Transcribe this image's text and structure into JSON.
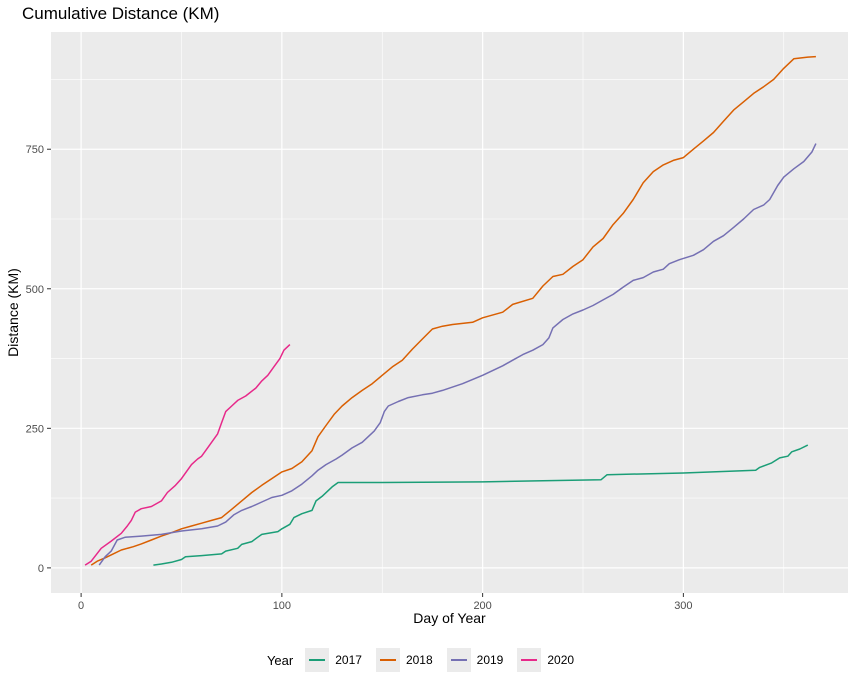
{
  "chart_data": {
    "type": "line",
    "title": "Cumulative Distance (KM)",
    "xlabel": "Day of Year",
    "ylabel": "Distance (KM)",
    "xlim": [
      -15,
      382
    ],
    "ylim": [
      -45,
      960
    ],
    "x_ticks": [
      0,
      100,
      200,
      300
    ],
    "y_ticks": [
      0,
      250,
      500,
      750
    ],
    "grid": true,
    "legend": {
      "title": "Year",
      "position": "bottom"
    },
    "series": [
      {
        "name": "2017",
        "color": "#1b9e77",
        "points": [
          [
            36,
            5
          ],
          [
            40,
            7
          ],
          [
            45,
            10
          ],
          [
            50,
            15
          ],
          [
            52,
            20
          ],
          [
            60,
            22
          ],
          [
            70,
            25
          ],
          [
            72,
            30
          ],
          [
            78,
            35
          ],
          [
            80,
            42
          ],
          [
            85,
            47
          ],
          [
            88,
            55
          ],
          [
            90,
            60
          ],
          [
            98,
            65
          ],
          [
            100,
            70
          ],
          [
            104,
            78
          ],
          [
            106,
            90
          ],
          [
            110,
            97
          ],
          [
            115,
            103
          ],
          [
            117,
            120
          ],
          [
            120,
            128
          ],
          [
            125,
            145
          ],
          [
            128,
            153
          ],
          [
            150,
            153
          ],
          [
            200,
            154
          ],
          [
            230,
            156
          ],
          [
            259,
            158
          ],
          [
            262,
            167
          ],
          [
            300,
            170
          ],
          [
            336,
            175
          ],
          [
            338,
            180
          ],
          [
            344,
            188
          ],
          [
            348,
            197
          ],
          [
            352,
            200
          ],
          [
            354,
            208
          ],
          [
            358,
            213
          ],
          [
            362,
            220
          ]
        ]
      },
      {
        "name": "2018",
        "color": "#d95f02",
        "points": [
          [
            5,
            5
          ],
          [
            8,
            12
          ],
          [
            12,
            18
          ],
          [
            16,
            25
          ],
          [
            20,
            32
          ],
          [
            26,
            38
          ],
          [
            30,
            43
          ],
          [
            35,
            50
          ],
          [
            40,
            57
          ],
          [
            45,
            63
          ],
          [
            50,
            70
          ],
          [
            55,
            75
          ],
          [
            60,
            80
          ],
          [
            65,
            85
          ],
          [
            70,
            90
          ],
          [
            75,
            105
          ],
          [
            80,
            120
          ],
          [
            85,
            135
          ],
          [
            90,
            148
          ],
          [
            95,
            160
          ],
          [
            100,
            172
          ],
          [
            105,
            178
          ],
          [
            110,
            190
          ],
          [
            115,
            210
          ],
          [
            118,
            235
          ],
          [
            122,
            255
          ],
          [
            126,
            275
          ],
          [
            130,
            290
          ],
          [
            135,
            305
          ],
          [
            140,
            318
          ],
          [
            145,
            330
          ],
          [
            150,
            345
          ],
          [
            155,
            360
          ],
          [
            160,
            372
          ],
          [
            165,
            392
          ],
          [
            170,
            410
          ],
          [
            175,
            428
          ],
          [
            180,
            433
          ],
          [
            185,
            436
          ],
          [
            195,
            440
          ],
          [
            200,
            448
          ],
          [
            210,
            458
          ],
          [
            215,
            472
          ],
          [
            225,
            483
          ],
          [
            230,
            505
          ],
          [
            235,
            522
          ],
          [
            240,
            526
          ],
          [
            245,
            540
          ],
          [
            250,
            552
          ],
          [
            255,
            575
          ],
          [
            260,
            590
          ],
          [
            265,
            615
          ],
          [
            270,
            635
          ],
          [
            275,
            660
          ],
          [
            280,
            690
          ],
          [
            285,
            710
          ],
          [
            290,
            722
          ],
          [
            295,
            730
          ],
          [
            300,
            735
          ],
          [
            305,
            750
          ],
          [
            310,
            765
          ],
          [
            315,
            780
          ],
          [
            320,
            800
          ],
          [
            325,
            820
          ],
          [
            330,
            835
          ],
          [
            335,
            850
          ],
          [
            340,
            862
          ],
          [
            345,
            875
          ],
          [
            350,
            895
          ],
          [
            355,
            912
          ],
          [
            362,
            915
          ],
          [
            366,
            916
          ]
        ]
      },
      {
        "name": "2019",
        "color": "#7570b3",
        "points": [
          [
            9,
            5
          ],
          [
            12,
            20
          ],
          [
            15,
            30
          ],
          [
            18,
            50
          ],
          [
            22,
            55
          ],
          [
            30,
            57
          ],
          [
            40,
            60
          ],
          [
            50,
            66
          ],
          [
            60,
            70
          ],
          [
            68,
            75
          ],
          [
            72,
            82
          ],
          [
            76,
            95
          ],
          [
            80,
            103
          ],
          [
            85,
            110
          ],
          [
            90,
            118
          ],
          [
            95,
            126
          ],
          [
            100,
            130
          ],
          [
            105,
            138
          ],
          [
            110,
            150
          ],
          [
            115,
            165
          ],
          [
            118,
            175
          ],
          [
            122,
            185
          ],
          [
            127,
            195
          ],
          [
            130,
            202
          ],
          [
            135,
            215
          ],
          [
            140,
            225
          ],
          [
            143,
            235
          ],
          [
            146,
            245
          ],
          [
            149,
            260
          ],
          [
            151,
            280
          ],
          [
            153,
            290
          ],
          [
            158,
            298
          ],
          [
            163,
            305
          ],
          [
            170,
            310
          ],
          [
            175,
            313
          ],
          [
            180,
            318
          ],
          [
            190,
            330
          ],
          [
            200,
            345
          ],
          [
            210,
            362
          ],
          [
            215,
            372
          ],
          [
            220,
            382
          ],
          [
            225,
            390
          ],
          [
            230,
            400
          ],
          [
            233,
            412
          ],
          [
            235,
            430
          ],
          [
            240,
            445
          ],
          [
            245,
            455
          ],
          [
            250,
            462
          ],
          [
            255,
            470
          ],
          [
            260,
            480
          ],
          [
            265,
            490
          ],
          [
            270,
            503
          ],
          [
            275,
            515
          ],
          [
            280,
            520
          ],
          [
            285,
            530
          ],
          [
            290,
            535
          ],
          [
            293,
            545
          ],
          [
            298,
            552
          ],
          [
            305,
            560
          ],
          [
            310,
            570
          ],
          [
            315,
            585
          ],
          [
            320,
            595
          ],
          [
            325,
            610
          ],
          [
            330,
            625
          ],
          [
            335,
            642
          ],
          [
            340,
            650
          ],
          [
            343,
            660
          ],
          [
            347,
            685
          ],
          [
            350,
            700
          ],
          [
            355,
            715
          ],
          [
            360,
            728
          ],
          [
            364,
            745
          ],
          [
            366,
            760
          ]
        ]
      },
      {
        "name": "2020",
        "color": "#e7298a",
        "points": [
          [
            2,
            5
          ],
          [
            5,
            12
          ],
          [
            10,
            35
          ],
          [
            15,
            48
          ],
          [
            20,
            62
          ],
          [
            23,
            75
          ],
          [
            25,
            85
          ],
          [
            27,
            100
          ],
          [
            30,
            106
          ],
          [
            35,
            110
          ],
          [
            40,
            120
          ],
          [
            43,
            135
          ],
          [
            47,
            148
          ],
          [
            50,
            160
          ],
          [
            55,
            185
          ],
          [
            58,
            195
          ],
          [
            60,
            200
          ],
          [
            62,
            210
          ],
          [
            65,
            225
          ],
          [
            68,
            240
          ],
          [
            70,
            260
          ],
          [
            72,
            280
          ],
          [
            75,
            290
          ],
          [
            78,
            300
          ],
          [
            82,
            308
          ],
          [
            87,
            322
          ],
          [
            90,
            335
          ],
          [
            93,
            345
          ],
          [
            96,
            360
          ],
          [
            99,
            375
          ],
          [
            101,
            390
          ],
          [
            104,
            400
          ]
        ]
      }
    ]
  }
}
